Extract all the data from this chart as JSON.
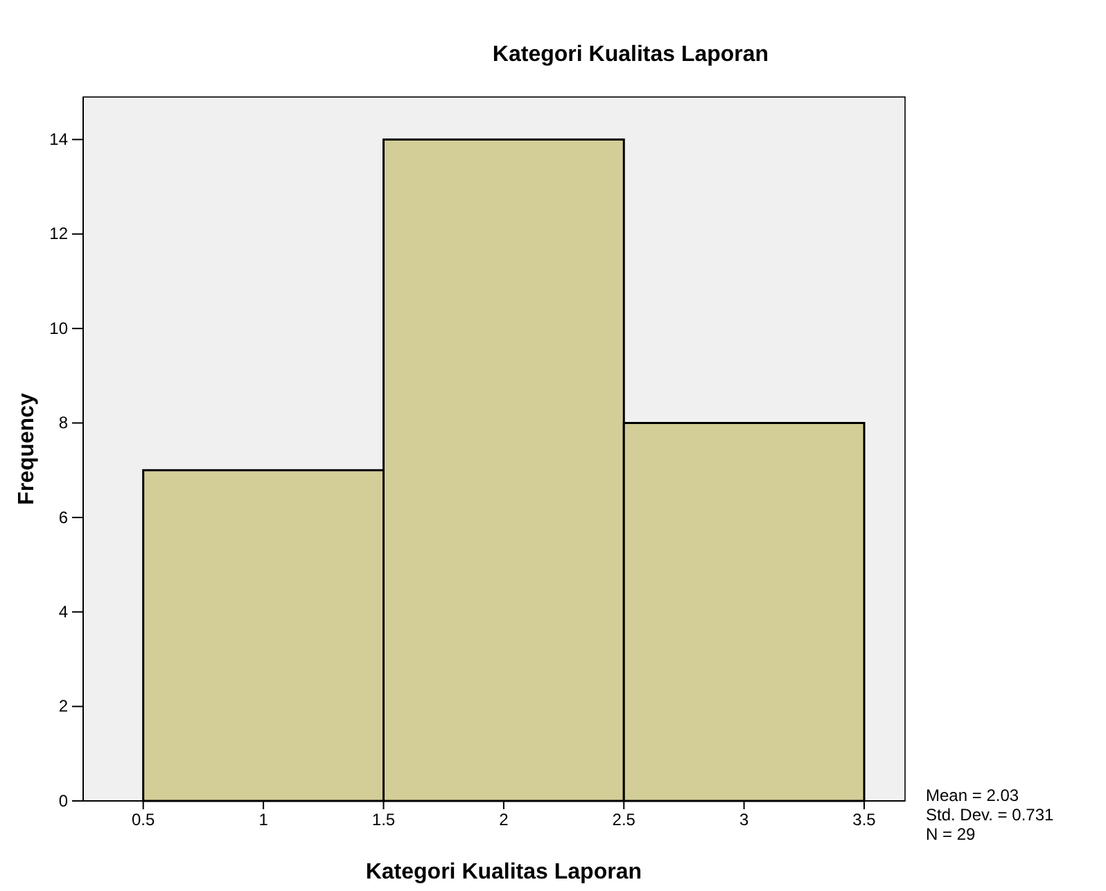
{
  "chart_data": {
    "type": "histogram",
    "title": "Kategori Kualitas Laporan",
    "xlabel": "Kategori Kualitas Laporan",
    "ylabel": "Frequency",
    "bins": [
      0.5,
      1.5,
      2.5,
      3.5
    ],
    "values": [
      7,
      14,
      8
    ],
    "color": "#d3ce97",
    "xlim": [
      0.25,
      3.67
    ],
    "xticks": [
      0.5,
      1,
      1.5,
      2,
      2.5,
      3,
      3.5
    ],
    "ylim": [
      0,
      14.9
    ],
    "yticks": [
      0,
      2,
      4,
      6,
      8,
      10,
      12,
      14
    ],
    "annotations": [
      "Mean = 2.03",
      "Std. Dev. = 0.731",
      "N = 29"
    ]
  }
}
